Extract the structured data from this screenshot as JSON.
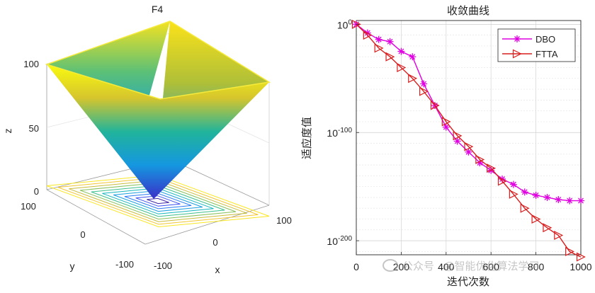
{
  "surface_chart": {
    "title": "F4",
    "xlabel": "x",
    "ylabel": "y",
    "zlabel": "z",
    "x_ticks": [
      "-100",
      "0",
      "100"
    ],
    "y_ticks": [
      "-100",
      "0",
      "100"
    ],
    "z_ticks": [
      "0",
      "50",
      "100"
    ]
  },
  "convergence_chart": {
    "title": "收敛曲线",
    "xlabel": "迭代次数",
    "ylabel": "适应度值",
    "x_ticks": [
      "0",
      "200",
      "400",
      "600",
      "800",
      "1000"
    ],
    "y_tick_exponents": [
      "0",
      "-100",
      "-200"
    ],
    "y_tick_base": "10"
  },
  "watermark": "公众号 · @智能优化算法学习",
  "colors": {
    "dbo": "#e000e0",
    "ftta": "#d81e1e",
    "grid": "#d9d9d9"
  },
  "chart_data": [
    {
      "type": "surface",
      "title": "F4",
      "function": "z = max(|x|, |y|)",
      "xlabel": "x",
      "ylabel": "y",
      "zlabel": "z",
      "xlim": [
        -100,
        100
      ],
      "ylim": [
        -100,
        100
      ],
      "zlim": [
        0,
        100
      ],
      "contour_levels": [
        10,
        20,
        30,
        40,
        50,
        60,
        70,
        80,
        90,
        100
      ],
      "colormap": "parula"
    },
    {
      "type": "line",
      "title": "收敛曲线",
      "xlabel": "迭代次数",
      "ylabel": "适应度值",
      "xlim": [
        0,
        1000
      ],
      "ylim": [
        1e-210,
        100000.0
      ],
      "yscale": "log",
      "grid": true,
      "legend_position": "top-right",
      "x": [
        0,
        50,
        100,
        150,
        200,
        250,
        300,
        350,
        400,
        450,
        500,
        550,
        600,
        650,
        700,
        750,
        800,
        850,
        900,
        950,
        1000
      ],
      "series": [
        {
          "name": "DBO",
          "marker": "asterisk",
          "log10_y": [
            0,
            -8,
            -14,
            -16,
            -25,
            -30,
            -55,
            -75,
            -95,
            -108,
            -118,
            -128,
            -135,
            -143,
            -148,
            -155,
            -158,
            -160,
            -162,
            -163,
            -163
          ]
        },
        {
          "name": "FTTA",
          "marker": "triangle-right",
          "log10_y": [
            0,
            -10,
            -22,
            -30,
            -40,
            -50,
            -62,
            -75,
            -90,
            -103,
            -113,
            -125,
            -133,
            -145,
            -157,
            -170,
            -180,
            -188,
            -195,
            -210,
            -215
          ]
        }
      ]
    }
  ]
}
